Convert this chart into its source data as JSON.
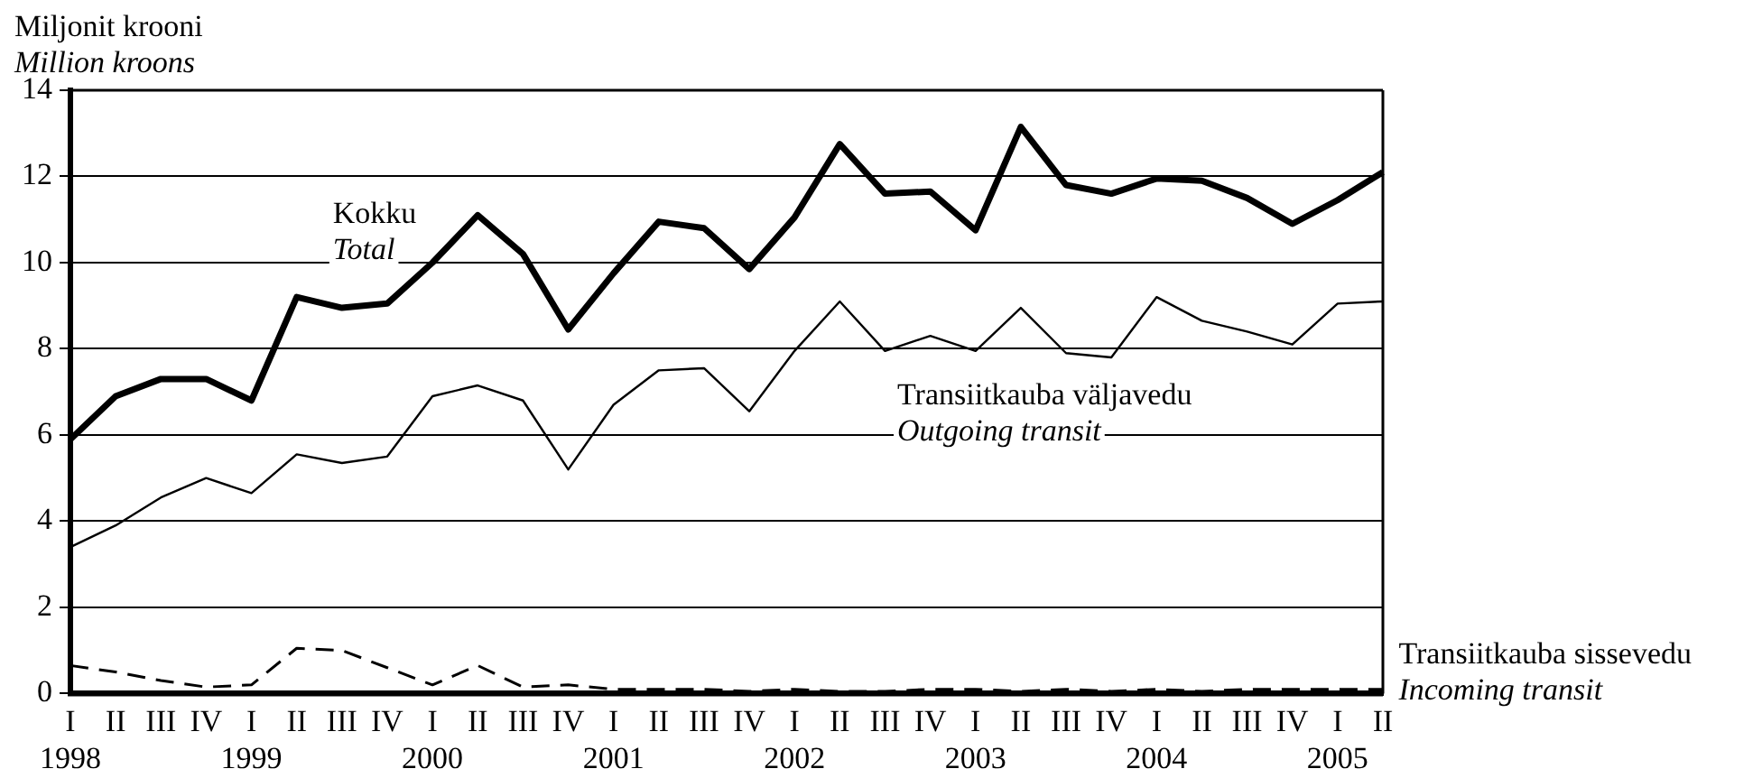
{
  "chart_data": {
    "type": "line",
    "ylabel": "Miljonit krooni\nMillion kroons",
    "categories": [
      "I\n1998",
      "II",
      "III",
      "IV",
      "I\n1999",
      "II",
      "III",
      "IV",
      "I\n2000",
      "II",
      "III",
      "IV",
      "I\n2001",
      "II",
      "III",
      "IV",
      "I\n2002",
      "II",
      "III",
      "IV",
      "I\n2003",
      "II",
      "III",
      "IV",
      "I\n2004",
      "II",
      "III",
      "IV",
      "I\n2005",
      "II"
    ],
    "series": [
      {
        "name": "Kokku\nTotal",
        "color": "#000000",
        "line_style": "solid",
        "values": [
          5.9,
          6.9,
          7.3,
          7.3,
          6.8,
          9.2,
          8.95,
          9.05,
          10.0,
          11.1,
          10.2,
          8.45,
          9.75,
          10.95,
          10.8,
          9.85,
          11.05,
          12.75,
          11.6,
          11.65,
          10.75,
          13.15,
          11.8,
          11.6,
          11.95,
          11.9,
          11.5,
          10.9,
          11.45,
          12.1
        ]
      },
      {
        "name": "Transiitkauba väljavedu\nOutgoing transit",
        "color": "#000000",
        "line_style": "solid",
        "values": [
          3.4,
          3.9,
          4.55,
          5.0,
          4.65,
          5.55,
          5.35,
          5.5,
          6.9,
          7.15,
          6.8,
          5.2,
          6.7,
          7.5,
          7.55,
          6.55,
          7.95,
          9.1,
          7.95,
          8.3,
          7.95,
          8.95,
          7.9,
          7.8,
          9.2,
          8.65,
          8.4,
          8.1,
          9.05,
          9.1
        ]
      },
      {
        "name": "Transiitkauba sissevedu\nIncoming transit",
        "color": "#000000",
        "line_style": "dashed",
        "values": [
          0.65,
          0.5,
          0.3,
          0.15,
          0.2,
          1.05,
          1.0,
          0.6,
          0.2,
          0.65,
          0.15,
          0.2,
          0.1,
          0.1,
          0.1,
          0.05,
          0.1,
          0.05,
          0.05,
          0.1,
          0.1,
          0.05,
          0.1,
          0.05,
          0.1,
          0.05,
          0.1,
          0.1,
          0.1,
          0.1
        ]
      }
    ],
    "ylim": [
      0,
      14
    ],
    "yticks": [
      0,
      2,
      4,
      6,
      8,
      10,
      12,
      14
    ],
    "grid": "y",
    "legend": false,
    "marker": "none"
  }
}
